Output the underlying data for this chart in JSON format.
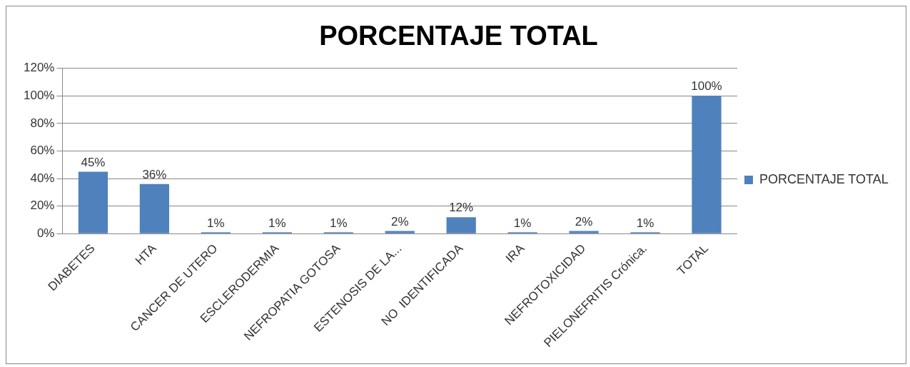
{
  "chart_data": {
    "type": "bar",
    "title": "PORCENTAJE TOTAL",
    "categories": [
      "DIABETES",
      "HTA",
      "CANCER DE UTERO",
      "ESCLERODERMIA",
      "NEFROPATIA GOTOSA",
      "ESTENOSIS DE LA...",
      "NO  IDENTIFICADA",
      "IRA",
      "NEFROTOXICIDAD",
      "PIELONEFRITIS Crónica.",
      "TOTAL"
    ],
    "series": [
      {
        "name": "PORCENTAJE TOTAL",
        "color": "#4f81bd",
        "values": [
          45,
          36,
          1,
          1,
          1,
          2,
          12,
          1,
          2,
          1,
          100
        ],
        "value_labels": [
          "45%",
          "36%",
          "1%",
          "1%",
          "1%",
          "2%",
          "12%",
          "1%",
          "2%",
          "1%",
          "100%"
        ]
      }
    ],
    "ylim": [
      0,
      120
    ],
    "yticks": [
      {
        "value": 0,
        "label": "0%"
      },
      {
        "value": 20,
        "label": "20%"
      },
      {
        "value": 40,
        "label": "40%"
      },
      {
        "value": 60,
        "label": "60%"
      },
      {
        "value": 80,
        "label": "80%"
      },
      {
        "value": 100,
        "label": "100%"
      },
      {
        "value": 120,
        "label": "120%"
      }
    ],
    "grid": "y",
    "legend": "right"
  }
}
